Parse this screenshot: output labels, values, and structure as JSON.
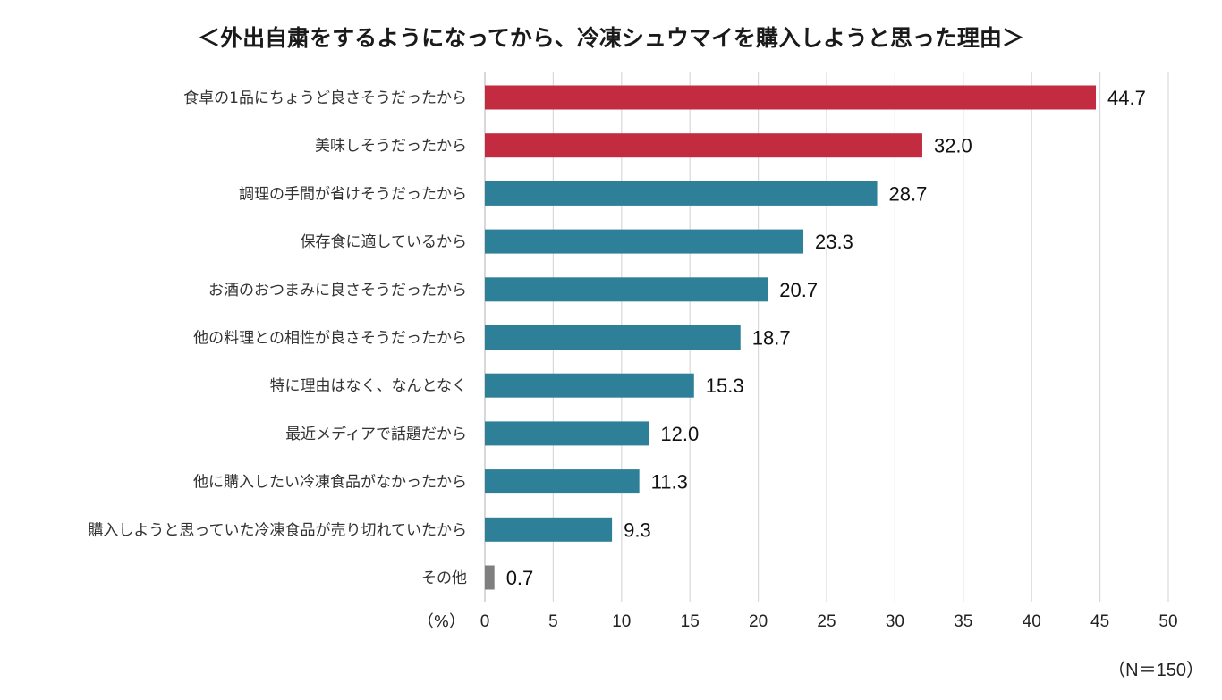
{
  "chart_data": {
    "type": "bar",
    "orientation": "horizontal",
    "title": "＜外出自粛をするようになってから、冷凍シュウマイを購入しようと思った理由＞",
    "xlabel": "（%）",
    "note": "（N＝150）",
    "xlim": [
      0,
      50
    ],
    "xticks": [
      0,
      5,
      10,
      15,
      20,
      25,
      30,
      35,
      40,
      45,
      50
    ],
    "grid": true,
    "legend": "none",
    "categories": [
      "食卓の1品にちょうど良さそうだったから",
      "美味しそうだったから",
      "調理の手間が省けそうだったから",
      "保存食に適しているから",
      "お酒のおつまみに良さそうだったから",
      "他の料理との相性が良さそうだったから",
      "特に理由はなく、なんとなく",
      "最近メディアで話題だから",
      "他に購入したい冷凍食品がなかったから",
      "購入しようと思っていた冷凍食品が売り切れていたから",
      "その他"
    ],
    "values": [
      44.7,
      32.0,
      28.7,
      23.3,
      20.7,
      18.7,
      15.3,
      12.0,
      11.3,
      9.3,
      0.7
    ],
    "value_labels": [
      "44.7",
      "32.0",
      "28.7",
      "23.3",
      "20.7",
      "18.7",
      "15.3",
      "12.0",
      "11.3",
      "9.3",
      "0.7"
    ],
    "bar_colors": [
      "#c22b40",
      "#c22b40",
      "#2e8099",
      "#2e8099",
      "#2e8099",
      "#2e8099",
      "#2e8099",
      "#2e8099",
      "#2e8099",
      "#2e8099",
      "#7f7f7f"
    ]
  }
}
